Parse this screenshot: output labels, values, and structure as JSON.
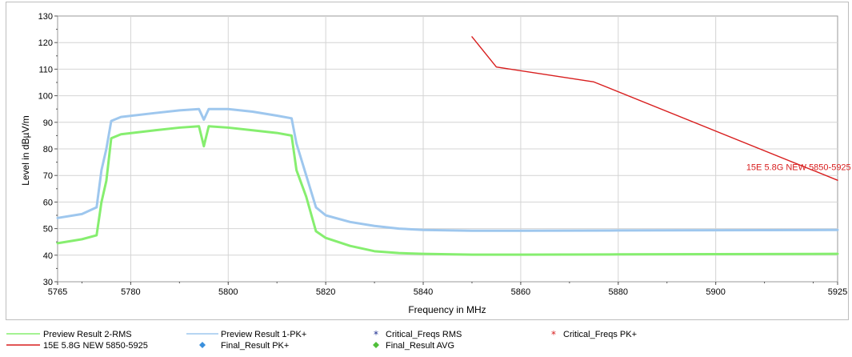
{
  "chart_data": {
    "type": "line",
    "title": "",
    "xlabel": "Frequency in MHz",
    "ylabel": "Level in dBµV/m",
    "xlim": [
      5765,
      5925
    ],
    "ylim": [
      30,
      130
    ],
    "x_ticks": [
      5765,
      5780,
      5800,
      5820,
      5840,
      5860,
      5880,
      5900,
      5925
    ],
    "y_ticks": [
      30,
      40,
      50,
      60,
      70,
      80,
      90,
      100,
      110,
      120,
      130
    ],
    "grid": true,
    "legend_position": "bottom",
    "series": [
      {
        "name": "Preview Result 2-RMS",
        "color": "#86ee6f",
        "points": [
          [
            5765,
            44.5
          ],
          [
            5770,
            46
          ],
          [
            5773,
            47.5
          ],
          [
            5774,
            60
          ],
          [
            5775,
            68
          ],
          [
            5776,
            84
          ],
          [
            5778,
            85.5
          ],
          [
            5785,
            87
          ],
          [
            5790,
            88
          ],
          [
            5794,
            88.5
          ],
          [
            5795,
            81
          ],
          [
            5796,
            88.5
          ],
          [
            5800,
            88
          ],
          [
            5805,
            87
          ],
          [
            5810,
            86
          ],
          [
            5813,
            85
          ],
          [
            5814,
            72
          ],
          [
            5816,
            62
          ],
          [
            5818,
            49
          ],
          [
            5820,
            46.5
          ],
          [
            5825,
            43.5
          ],
          [
            5830,
            41.5
          ],
          [
            5835,
            40.8
          ],
          [
            5840,
            40.5
          ],
          [
            5850,
            40.2
          ],
          [
            5860,
            40.2
          ],
          [
            5880,
            40.3
          ],
          [
            5900,
            40.4
          ],
          [
            5925,
            40.5
          ]
        ]
      },
      {
        "name": "Preview Result 1-PK+",
        "color": "#9ec7ee",
        "points": [
          [
            5765,
            54
          ],
          [
            5770,
            55.5
          ],
          [
            5773,
            58
          ],
          [
            5774,
            72
          ],
          [
            5775,
            80
          ],
          [
            5776,
            90.5
          ],
          [
            5778,
            92
          ],
          [
            5785,
            93.5
          ],
          [
            5790,
            94.5
          ],
          [
            5794,
            95
          ],
          [
            5795,
            91
          ],
          [
            5796,
            95
          ],
          [
            5800,
            95
          ],
          [
            5805,
            94
          ],
          [
            5810,
            92.5
          ],
          [
            5813,
            91.5
          ],
          [
            5814,
            82
          ],
          [
            5816,
            70
          ],
          [
            5818,
            58
          ],
          [
            5820,
            55
          ],
          [
            5825,
            52.5
          ],
          [
            5830,
            51
          ],
          [
            5835,
            50
          ],
          [
            5840,
            49.5
          ],
          [
            5850,
            49.2
          ],
          [
            5860,
            49.2
          ],
          [
            5880,
            49.3
          ],
          [
            5900,
            49.4
          ],
          [
            5925,
            49.5
          ]
        ]
      },
      {
        "name": "15E 5.8G NEW 5850-5925",
        "color": "#d81e1e",
        "points": [
          [
            5850,
            122.2
          ],
          [
            5855,
            110.8
          ],
          [
            5875,
            105.2
          ],
          [
            5925,
            68.2
          ]
        ]
      }
    ],
    "markers": [
      {
        "name": "Critical_Freqs RMS",
        "color": "#1a2b8f",
        "symbol": "star",
        "points": []
      },
      {
        "name": "Critical_Freqs PK+",
        "color": "#d81e1e",
        "symbol": "star",
        "points": []
      },
      {
        "name": "Final_Result PK+",
        "color": "#3a8fdc",
        "symbol": "diamond",
        "points": []
      },
      {
        "name": "Final_Result AVG",
        "color": "#4fbf3a",
        "symbol": "diamond",
        "points": []
      }
    ],
    "annotations": [
      {
        "text": "15E 5.8G NEW 5850-5925",
        "x": 5917,
        "y": 72,
        "color": "#d81e1e"
      }
    ],
    "legend": [
      {
        "label": "Preview Result 2-RMS",
        "kind": "line",
        "color": "#86ee6f"
      },
      {
        "label": "Preview Result 1-PK+",
        "kind": "line",
        "color": "#9ec7ee"
      },
      {
        "label": "Critical_Freqs RMS",
        "kind": "star",
        "color": "#1a2b8f"
      },
      {
        "label": "Critical_Freqs PK+",
        "kind": "star",
        "color": "#d81e1e"
      },
      {
        "label": "15E 5.8G NEW 5850-5925",
        "kind": "line",
        "color": "#d81e1e"
      },
      {
        "label": "Final_Result PK+",
        "kind": "diamond",
        "color": "#3a8fdc"
      },
      {
        "label": "Final_Result AVG",
        "kind": "diamond",
        "color": "#4fbf3a"
      }
    ]
  }
}
